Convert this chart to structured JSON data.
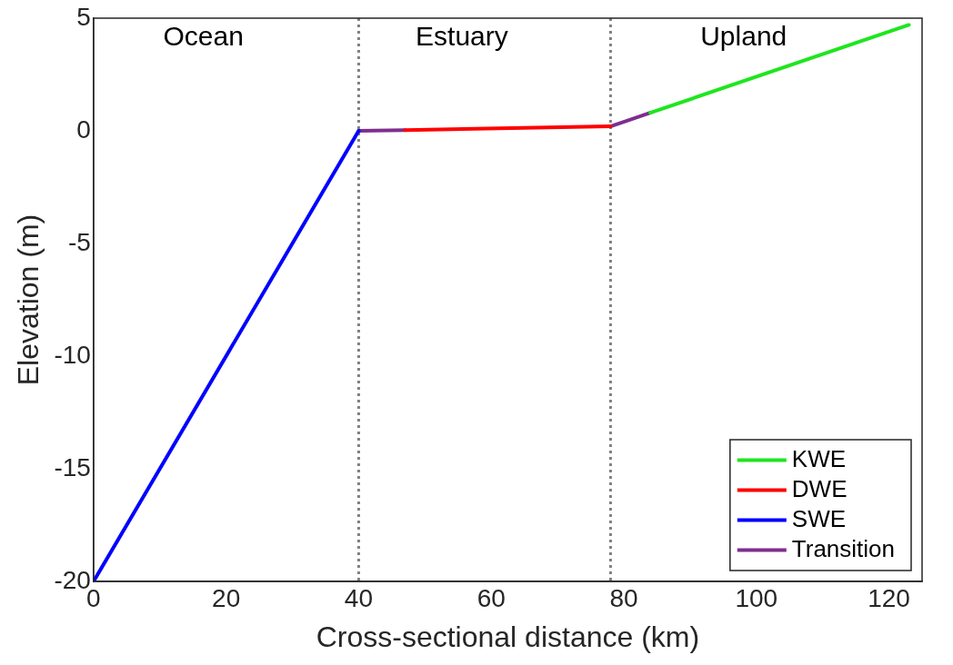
{
  "chart_data": {
    "type": "line",
    "xlabel": "Cross-sectional distance (km)",
    "ylabel": "Elevation (m)",
    "xlim": [
      0,
      125
    ],
    "xticks": [
      0,
      20,
      40,
      60,
      80,
      100,
      120
    ],
    "ylim": [
      -20,
      5
    ],
    "yticks": [
      -20,
      -15,
      -10,
      -5,
      0,
      5
    ],
    "grid": false,
    "legend": "bottom right",
    "marker": "none",
    "line_style": "solid",
    "series": [
      {
        "name": "KWE",
        "color": "#1ee61e",
        "x": [
          84,
          123
        ],
        "values": [
          0.8,
          4.7
        ]
      },
      {
        "name": "DWE",
        "color": "#ff0000",
        "x": [
          47,
          78
        ],
        "values": [
          0.03,
          0.2
        ]
      },
      {
        "name": "SWE",
        "color": "#0000ff",
        "x": [
          0,
          40
        ],
        "values": [
          -20,
          0
        ]
      },
      {
        "name": "Transition",
        "color": "#7e2f8e",
        "x": [
          40,
          47,
          62,
          78,
          84
        ],
        "values": [
          0,
          0.03,
          null,
          0.2,
          0.8
        ]
      }
    ],
    "ref_lines": [
      {
        "axis": "x",
        "value": 40,
        "color": "#808080",
        "line_style": "dotted"
      },
      {
        "axis": "x",
        "value": 78,
        "color": "#808080",
        "line_style": "dotted"
      }
    ],
    "annotations": [
      "Ocean",
      "Estuary",
      "Upland"
    ]
  }
}
